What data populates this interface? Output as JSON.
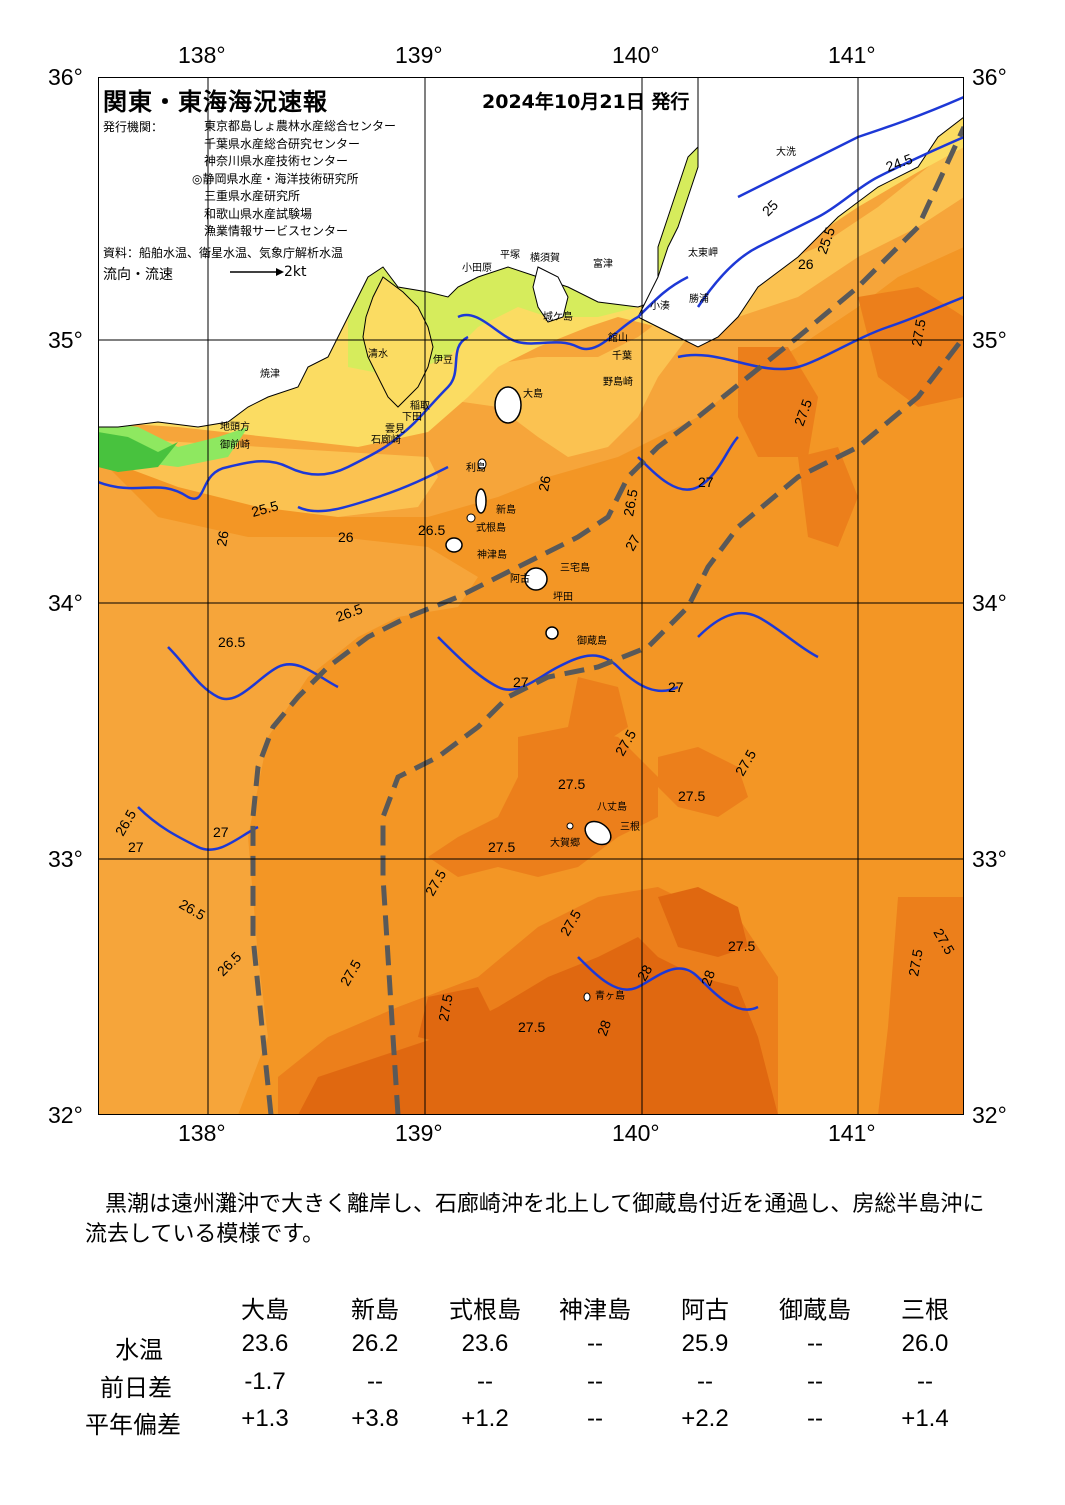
{
  "map": {
    "title": "関東・東海海況速報",
    "issue_date": "2024年10月21日 発行",
    "issuer_label": "発行機関：",
    "issuers": [
      "東京都島しょ農林水産総合センター",
      "千葉県水産総合研究センター",
      "神奈川県水産技術センター",
      "◎静岡県水産・海洋技術研究所",
      "三重県水産研究所",
      "和歌山県水産試験場",
      "漁業情報サービスセンター"
    ],
    "source": "資料：船舶水温、衛星水温、気象庁解析水温",
    "flow_label": "流向・流速",
    "flow_scale": "2kt",
    "lon_labels": [
      "138°",
      "139°",
      "140°",
      "141°"
    ],
    "lat_labels": [
      "36°",
      "35°",
      "34°",
      "33°",
      "32°"
    ],
    "places": [
      "大洗",
      "太東岬",
      "平塚",
      "横須賀",
      "富津",
      "小田原",
      "城ケ島",
      "勝浦",
      "野島崎",
      "大島",
      "利島",
      "新島",
      "式根島",
      "神津島",
      "三宅島",
      "阿古",
      "坪田",
      "御蔵島",
      "八丈島",
      "三根",
      "大賀郷",
      "青ヶ島",
      "清水",
      "焼津",
      "御前崎",
      "地頭方",
      "伊豆",
      "稲取",
      "下田",
      "石廊崎",
      "雲見",
      "千葉",
      "館山",
      "小湊"
    ],
    "contour_labels": [
      "24.5",
      "25",
      "25.5",
      "26",
      "26.5",
      "27",
      "27.5",
      "28"
    ],
    "colors": {
      "t_lt24": "#48c23e",
      "t24": "#8ee860",
      "t25": "#d6ec5c",
      "t25_5": "#fbdc62",
      "t26": "#fbc251",
      "t26_5": "#f6a53a",
      "t27": "#f39625",
      "t27_5": "#ec7f1b",
      "t28": "#e06810",
      "isotherm": "#1d38d6",
      "kuroshio_axis": "#595959",
      "land": "#ffffff"
    }
  },
  "comment": "黒潮は遠州灘沖で大きく離岸し、石廊崎沖を北上して御蔵島付近を通過し、房総半島沖に流去している模様です。",
  "table": {
    "columns": [
      "大島",
      "新島",
      "式根島",
      "神津島",
      "阿古",
      "御蔵島",
      "三根"
    ],
    "rows": [
      {
        "label": "水温",
        "values": [
          "23.6",
          "26.2",
          "23.6",
          "--",
          "25.9",
          "--",
          "26.0"
        ]
      },
      {
        "label": "前日差",
        "values": [
          "-1.7",
          "--",
          "--",
          "--",
          "--",
          "--",
          "--"
        ]
      },
      {
        "label": "平年偏差",
        "values": [
          "+1.3",
          "+3.8",
          "+1.2",
          "--",
          "+2.2",
          "--",
          "+1.4"
        ]
      }
    ]
  }
}
